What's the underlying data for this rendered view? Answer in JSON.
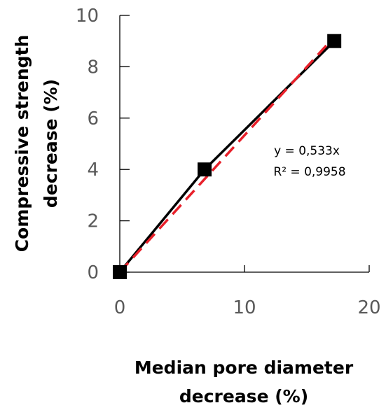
{
  "chart_data": {
    "type": "scatter",
    "title": "",
    "xlabel": [
      "Median pore diameter",
      "decrease (%)"
    ],
    "ylabel": [
      "Compressive strength",
      "decrease (%)"
    ],
    "xlim": [
      0,
      20
    ],
    "ylim": [
      0,
      10
    ],
    "xticks": [
      0,
      10,
      20
    ],
    "xtick_labels": [
      "0",
      "10",
      "20"
    ],
    "yticks": [
      0,
      2,
      4,
      6,
      8,
      10
    ],
    "ytick_labels": [
      "0",
      "2",
      "4",
      "6",
      "8",
      "10"
    ],
    "grid": false,
    "legend": false,
    "series": [
      {
        "marker": "square",
        "line": "solid",
        "color": "#000000",
        "x": [
          0,
          6.8,
          17.2
        ],
        "y": [
          0,
          4,
          9
        ]
      }
    ],
    "trendline": {
      "type": "linear-through-origin",
      "slope": 0.533,
      "color": "#e8202a",
      "style": "dashed",
      "x_range": [
        0,
        17.2
      ]
    },
    "annotations": [
      "y = 0,533x",
      "R² = 0,9958"
    ]
  }
}
